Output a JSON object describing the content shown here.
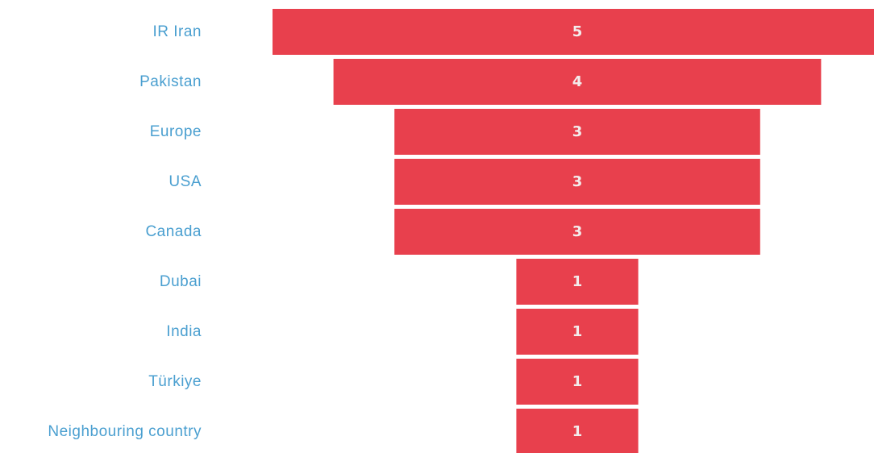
{
  "chart_data": {
    "type": "bar",
    "orientation": "horizontal",
    "layout": "funnel-centered",
    "categories": [
      "IR Iran",
      "Pakistan",
      "Europe",
      "USA",
      "Canada",
      "Dubai",
      "India",
      "Türkiye",
      "Neighbouring country"
    ],
    "values": [
      5,
      4,
      3,
      3,
      3,
      1,
      1,
      1,
      1
    ],
    "value_labels": [
      "5",
      "4",
      "3",
      "3",
      "3",
      "1",
      "1",
      "1",
      "1"
    ],
    "title": "",
    "xlabel": "",
    "ylabel": "",
    "xlim": [
      0,
      5
    ],
    "grid": false,
    "legend": "none",
    "colors": {
      "bar": "#e8404d",
      "category_label": "#4a9fd0",
      "value_label": "#f3ecec",
      "background": "#ffffff"
    }
  }
}
